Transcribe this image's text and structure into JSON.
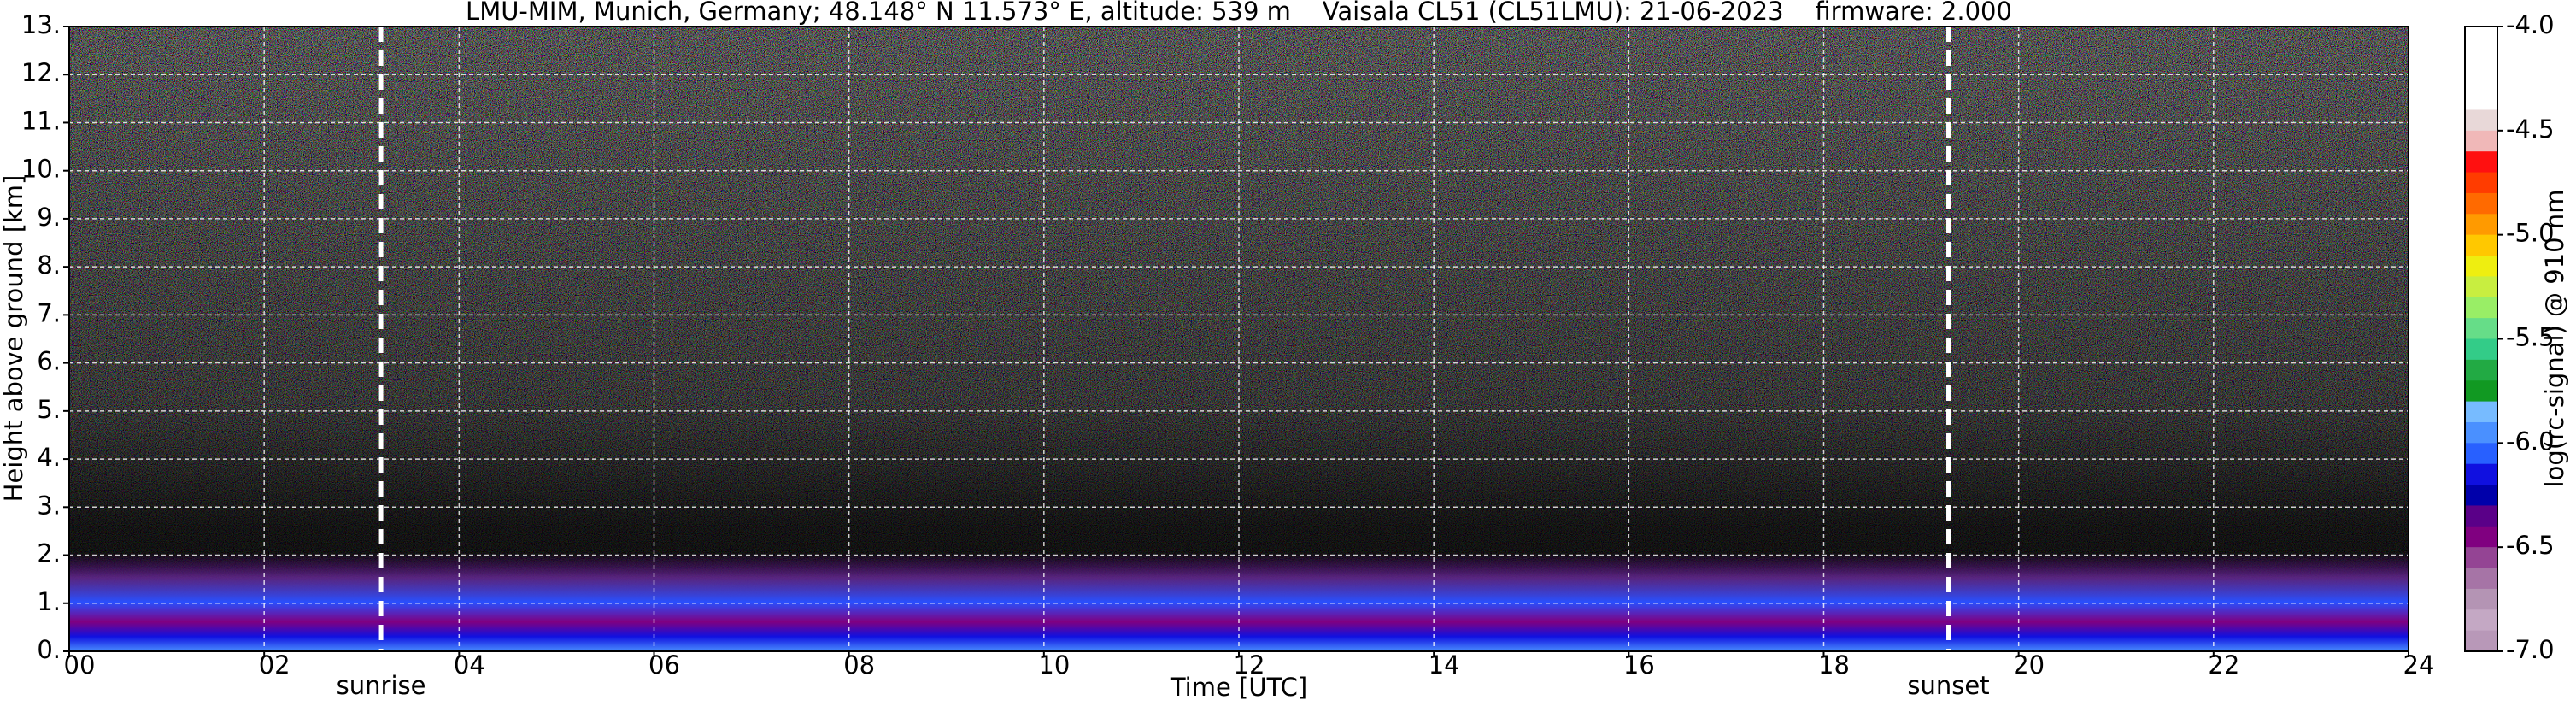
{
  "chart_data": {
    "type": "heatmap",
    "title": "LMU-MIM, Munich, Germany; 48.148° N 11.573° E, altitude: 539 m    Vaisala CL51 (CL51LMU): 21-06-2023    firmware: 2.000",
    "x_label": "Time [UTC]",
    "y_label": "Height above ground [km]",
    "xlim": [
      0,
      24
    ],
    "ylim": [
      0,
      13
    ],
    "xticks": [
      {
        "value": 0,
        "label": "00"
      },
      {
        "value": 2,
        "label": "02"
      },
      {
        "value": 4,
        "label": "04"
      },
      {
        "value": 6,
        "label": "06"
      },
      {
        "value": 8,
        "label": "08"
      },
      {
        "value": 10,
        "label": "10"
      },
      {
        "value": 12,
        "label": "12"
      },
      {
        "value": 14,
        "label": "14"
      },
      {
        "value": 16,
        "label": "16"
      },
      {
        "value": 18,
        "label": "18"
      },
      {
        "value": 20,
        "label": "20"
      },
      {
        "value": 22,
        "label": "22"
      },
      {
        "value": 24,
        "label": "24"
      }
    ],
    "yticks": [
      {
        "value": 0,
        "label": "0."
      },
      {
        "value": 1,
        "label": "1."
      },
      {
        "value": 2,
        "label": "2."
      },
      {
        "value": 3,
        "label": "3."
      },
      {
        "value": 4,
        "label": "4."
      },
      {
        "value": 5,
        "label": "5."
      },
      {
        "value": 6,
        "label": "6."
      },
      {
        "value": 7,
        "label": "7."
      },
      {
        "value": 8,
        "label": "8."
      },
      {
        "value": 9,
        "label": "9."
      },
      {
        "value": 10,
        "label": "10."
      },
      {
        "value": 11,
        "label": "11."
      },
      {
        "value": 12,
        "label": "12."
      },
      {
        "value": 13,
        "label": "13."
      }
    ],
    "grid": true,
    "annotations": [
      {
        "x": 3.2,
        "label": "sunrise"
      },
      {
        "x": 19.28,
        "label": "sunset"
      }
    ],
    "colorbar": {
      "label": "log(rc-signal) @ 910 nm",
      "lim": [
        -7,
        -4
      ],
      "ticks": [
        {
          "value": -4,
          "label": "-4.0"
        },
        {
          "value": -4.5,
          "label": "-4.5"
        },
        {
          "value": -5,
          "label": "-5.0"
        },
        {
          "value": -5.5,
          "label": "-5.5"
        },
        {
          "value": -6,
          "label": "-6.0"
        },
        {
          "value": -6.5,
          "label": "-6.5"
        },
        {
          "value": -7,
          "label": "-7.0"
        }
      ],
      "colors": [
        "#ffffff",
        "#ffffff",
        "#ffffff",
        "#ffffff",
        "#e8d8d8",
        "#f0b8b8",
        "#ff1010",
        "#ff3c00",
        "#ff6a00",
        "#ff9a00",
        "#ffc800",
        "#eeee10",
        "#c8ee40",
        "#99ee66",
        "#66dd88",
        "#33cc88",
        "#22aa44",
        "#119922",
        "#77bbff",
        "#4a90ff",
        "#2860ff",
        "#1010e0",
        "#0000aa",
        "#5a0088",
        "#800080",
        "#944494",
        "#a674a6",
        "#b494b4",
        "#c4a8c4",
        "#b898b8"
      ]
    }
  }
}
